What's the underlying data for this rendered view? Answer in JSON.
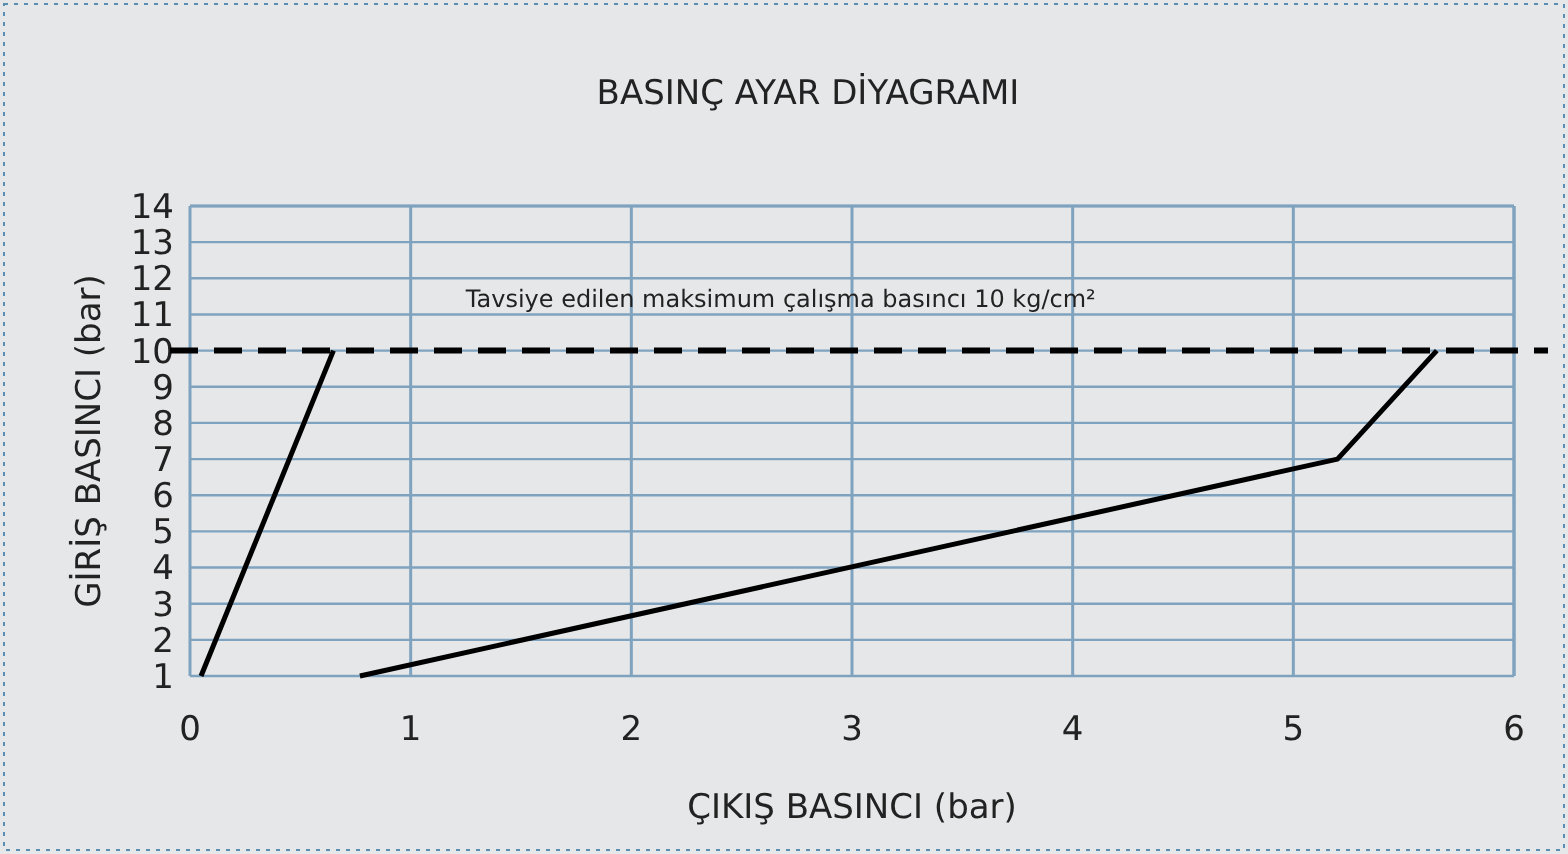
{
  "chart_data": {
    "type": "line",
    "title": "BASINÇ AYAR DİYAGRAMI",
    "xlabel": "ÇIKIŞ BASINCI (bar)",
    "ylabel": "GİRİŞ BASINCI (bar)",
    "series": [
      {
        "color": "#000000",
        "x": [
          0.05,
          0.65
        ],
        "values": [
          1,
          10
        ]
      },
      {
        "color": "#000000",
        "x": [
          0.77,
          5.2,
          5.65
        ],
        "values": [
          1,
          7,
          10
        ]
      }
    ],
    "xlim": [
      0,
      6
    ],
    "xticks": [
      0,
      1,
      2,
      3,
      4,
      5,
      6
    ],
    "ylim": [
      1,
      14
    ],
    "yticks": [
      1,
      2,
      3,
      4,
      5,
      6,
      7,
      8,
      9,
      10,
      11,
      12,
      13,
      14
    ],
    "grid": true,
    "marker": "none",
    "line_style": "solid",
    "ref_lines": [
      {
        "axis": "y",
        "value": 10,
        "label": "Tavsiye edilen maksimum çalışma basıncı 10 kg/cm²",
        "color": "#000000",
        "line_style": "dashed"
      }
    ]
  }
}
